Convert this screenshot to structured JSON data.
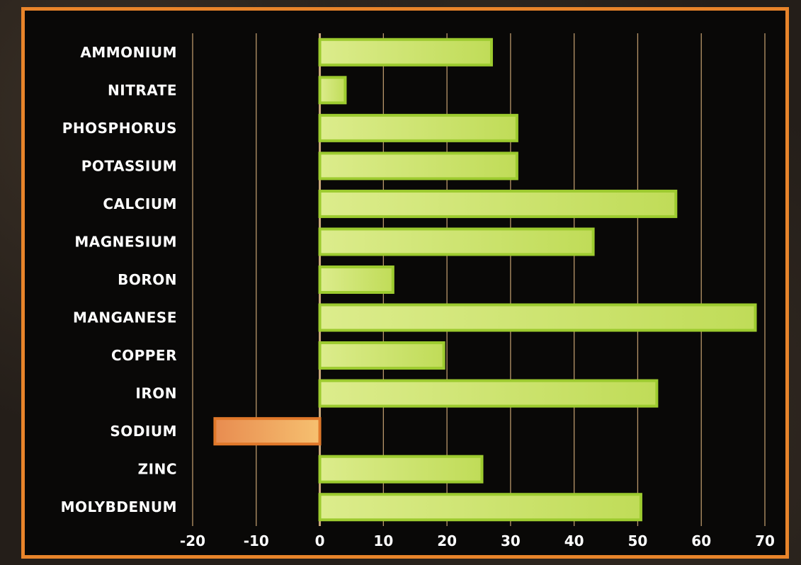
{
  "chart_data": {
    "type": "bar",
    "orientation": "horizontal",
    "categories": [
      "AMMONIUM",
      "NITRATE",
      "PHOSPHORUS",
      "POTASSIUM",
      "CALCIUM",
      "MAGNESIUM",
      "BORON",
      "MANGANESE",
      "COPPER",
      "IRON",
      "SODIUM",
      "ZINC",
      "MOLYBDENUM"
    ],
    "values": [
      27,
      4,
      31,
      31,
      56,
      43,
      11.5,
      68.5,
      19.5,
      53,
      -16.5,
      25.5,
      50.5
    ],
    "xlim": [
      -20,
      70
    ],
    "xticks": [
      "-20",
      "-10",
      "0",
      "10",
      "20",
      "30",
      "40",
      "50",
      "60",
      "70"
    ],
    "grid": true,
    "title": "",
    "xlabel": "",
    "ylabel": "",
    "colors": {
      "positive_fill": "#cde46a",
      "positive_border": "#9dcb2f",
      "negative_fill": "#f0b070",
      "negative_border": "#e0782a",
      "gridline": "#b9976a",
      "zero_axis": "#c9a77a",
      "frame_border": "#e8842a"
    }
  }
}
